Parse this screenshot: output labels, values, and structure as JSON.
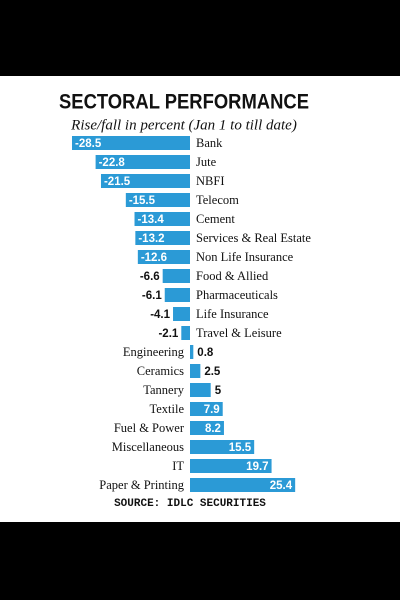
{
  "chart_data": {
    "type": "bar",
    "orientation": "horizontal",
    "title": "SECTORAL PERFORMANCE",
    "subtitle": "Rise/fall in percent (Jan 1 to till date)",
    "source": "SOURCE: IDLC SECURITIES",
    "color": "#2b9ad6",
    "categories": [
      "Bank",
      "Jute",
      "NBFI",
      "Telecom",
      "Cement",
      "Services & Real Estate",
      "Non Life Insurance",
      "Food & Allied",
      "Pharmaceuticals",
      "Life Insurance",
      "Travel & Leisure",
      "Engineering",
      "Ceramics",
      "Tannery",
      "Textile",
      "Fuel & Power",
      "Miscellaneous",
      "IT",
      "Paper & Printing"
    ],
    "values": [
      -28.5,
      -22.8,
      -21.5,
      -15.5,
      -13.4,
      -13.2,
      -12.6,
      -6.6,
      -6.1,
      -4.1,
      -2.1,
      0.8,
      2.5,
      5,
      7.9,
      8.2,
      15.5,
      19.7,
      25.4
    ]
  }
}
